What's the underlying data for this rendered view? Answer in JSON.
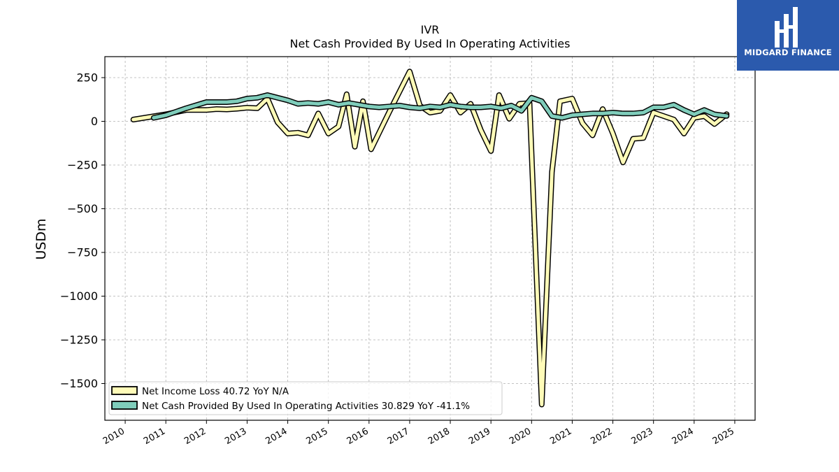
{
  "brand": {
    "name": "MIDGARD FINANCE",
    "color": "#2b5aad"
  },
  "chart_data": {
    "type": "line",
    "title": "IVR",
    "subtitle": "Net Cash Provided By Used In Operating Activities",
    "xlabel": "",
    "ylabel": "USDm",
    "xlim": [
      2009.5,
      2025.5
    ],
    "ylim": [
      -1710,
      370
    ],
    "yticks": [
      250,
      0,
      -250,
      -500,
      -750,
      -1000,
      -1250,
      -1500
    ],
    "ytick_labels": [
      "250",
      "0",
      "−250",
      "−500",
      "−750",
      "−1000",
      "−1250",
      "−1500"
    ],
    "xticks": [
      2010,
      2011,
      2012,
      2013,
      2014,
      2015,
      2016,
      2017,
      2018,
      2019,
      2020,
      2021,
      2022,
      2023,
      2024,
      2025
    ],
    "xtick_labels": [
      "2010",
      "2011",
      "2012",
      "2013",
      "2014",
      "2015",
      "2016",
      "2017",
      "2018",
      "2019",
      "2020",
      "2021",
      "2022",
      "2023",
      "2024",
      "2025"
    ],
    "grid": true,
    "legend_position": "lower-left",
    "series": [
      {
        "name": "Net Income Loss  40.72 YoY N/A",
        "color": "#fffbb8",
        "points": [
          [
            2010.2,
            10
          ],
          [
            2011.0,
            40
          ],
          [
            2011.5,
            65
          ],
          [
            2012.0,
            65
          ],
          [
            2012.25,
            70
          ],
          [
            2012.5,
            68
          ],
          [
            2012.75,
            72
          ],
          [
            2013.0,
            78
          ],
          [
            2013.25,
            75
          ],
          [
            2013.5,
            130
          ],
          [
            2013.75,
            -5
          ],
          [
            2014.0,
            -70
          ],
          [
            2014.25,
            -65
          ],
          [
            2014.5,
            -80
          ],
          [
            2014.75,
            45
          ],
          [
            2015.0,
            -70
          ],
          [
            2015.25,
            -30
          ],
          [
            2015.45,
            155
          ],
          [
            2015.65,
            -145
          ],
          [
            2015.85,
            115
          ],
          [
            2016.05,
            -160
          ],
          [
            2016.5,
            55
          ],
          [
            2017.0,
            285
          ],
          [
            2017.25,
            90
          ],
          [
            2017.5,
            50
          ],
          [
            2017.75,
            60
          ],
          [
            2018.0,
            150
          ],
          [
            2018.25,
            50
          ],
          [
            2018.5,
            100
          ],
          [
            2018.75,
            -50
          ],
          [
            2019.0,
            -170
          ],
          [
            2019.2,
            150
          ],
          [
            2019.45,
            15
          ],
          [
            2019.7,
            100
          ],
          [
            2019.95,
            105
          ],
          [
            2020.25,
            -1620
          ],
          [
            2020.5,
            -290
          ],
          [
            2020.7,
            115
          ],
          [
            2021.0,
            130
          ],
          [
            2021.25,
            -10
          ],
          [
            2021.5,
            -80
          ],
          [
            2021.75,
            70
          ],
          [
            2022.0,
            -70
          ],
          [
            2022.25,
            -235
          ],
          [
            2022.5,
            -100
          ],
          [
            2022.75,
            -95
          ],
          [
            2023.0,
            50
          ],
          [
            2023.5,
            10
          ],
          [
            2023.75,
            -70
          ],
          [
            2024.0,
            20
          ],
          [
            2024.25,
            30
          ],
          [
            2024.5,
            -15
          ],
          [
            2024.8,
            41
          ]
        ]
      },
      {
        "name": "Net Cash Provided By Used In Operating Activities  30.829 YoY -41.1%",
        "color": "#7fcdbb",
        "points": [
          [
            2010.7,
            20
          ],
          [
            2011.0,
            35
          ],
          [
            2011.5,
            75
          ],
          [
            2012.0,
            110
          ],
          [
            2012.5,
            110
          ],
          [
            2012.75,
            115
          ],
          [
            2013.0,
            130
          ],
          [
            2013.25,
            135
          ],
          [
            2013.5,
            150
          ],
          [
            2013.75,
            135
          ],
          [
            2014.0,
            120
          ],
          [
            2014.25,
            100
          ],
          [
            2014.5,
            105
          ],
          [
            2014.75,
            100
          ],
          [
            2015.0,
            110
          ],
          [
            2015.25,
            95
          ],
          [
            2015.5,
            105
          ],
          [
            2015.75,
            95
          ],
          [
            2016.0,
            85
          ],
          [
            2016.25,
            80
          ],
          [
            2016.5,
            85
          ],
          [
            2016.75,
            90
          ],
          [
            2017.0,
            80
          ],
          [
            2017.25,
            75
          ],
          [
            2017.5,
            85
          ],
          [
            2017.75,
            80
          ],
          [
            2018.0,
            95
          ],
          [
            2018.25,
            85
          ],
          [
            2018.5,
            80
          ],
          [
            2018.75,
            80
          ],
          [
            2019.0,
            85
          ],
          [
            2019.25,
            75
          ],
          [
            2019.5,
            90
          ],
          [
            2019.75,
            60
          ],
          [
            2020.0,
            135
          ],
          [
            2020.25,
            115
          ],
          [
            2020.5,
            30
          ],
          [
            2020.75,
            20
          ],
          [
            2021.0,
            35
          ],
          [
            2021.25,
            40
          ],
          [
            2021.5,
            45
          ],
          [
            2021.75,
            45
          ],
          [
            2022.0,
            50
          ],
          [
            2022.25,
            45
          ],
          [
            2022.5,
            45
          ],
          [
            2022.75,
            50
          ],
          [
            2023.0,
            80
          ],
          [
            2023.25,
            80
          ],
          [
            2023.5,
            95
          ],
          [
            2023.75,
            65
          ],
          [
            2024.0,
            40
          ],
          [
            2024.25,
            65
          ],
          [
            2024.5,
            40
          ],
          [
            2024.8,
            31
          ]
        ]
      }
    ]
  }
}
